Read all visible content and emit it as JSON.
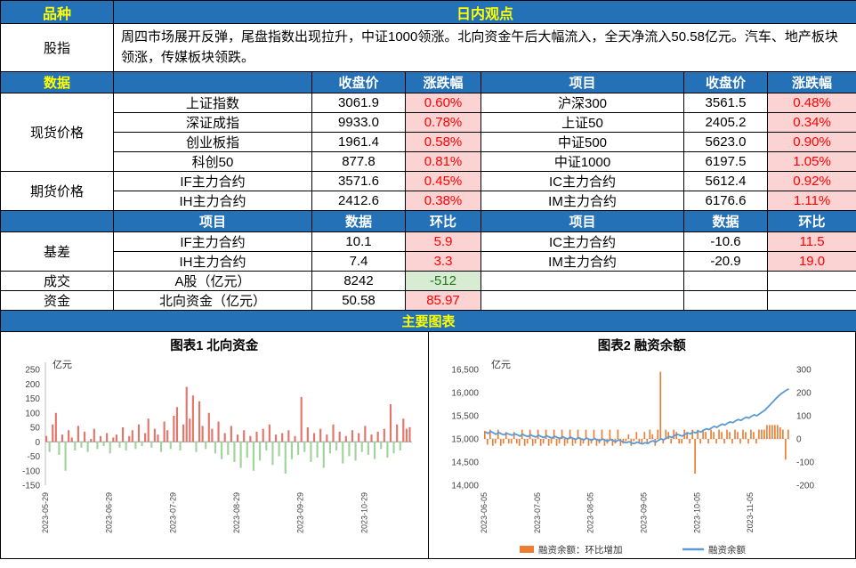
{
  "colors": {
    "header_blue": "#2471b8",
    "header_yellow": "#ffff00",
    "pink_bg": "#fbd3d3",
    "red_text": "#ff0000",
    "green_bg": "#d8ecd4",
    "green_text": "#217821"
  },
  "top": {
    "col1": "品种",
    "title": "日内观点"
  },
  "view": {
    "label": "股指",
    "text": "周四市场展开反弹，尾盘指数出现拉升，中证1000领涨。北向资金午后大幅流入，全天净流入50.58亿元。汽车、地产板块领涨，传媒板块领跌。"
  },
  "h1": {
    "c1": "数据",
    "c3": "收盘价",
    "c4": "涨跌幅",
    "c5": "项目",
    "c6": "收盘价",
    "c7": "涨跌幅"
  },
  "spot": {
    "label": "现货价格",
    "rows": [
      {
        "n1": "上证指数",
        "v1": "3061.9",
        "p1": "0.60%",
        "n2": "沪深300",
        "v2": "3561.5",
        "p2": "0.48%"
      },
      {
        "n1": "深证成指",
        "v1": "9933.0",
        "p1": "0.78%",
        "n2": "上证50",
        "v2": "2405.2",
        "p2": "0.34%"
      },
      {
        "n1": "创业板指",
        "v1": "1961.4",
        "p1": "0.58%",
        "n2": "中证500",
        "v2": "5623.0",
        "p2": "0.90%"
      },
      {
        "n1": "科创50",
        "v1": "877.8",
        "p1": "0.81%",
        "n2": "中证1000",
        "v2": "6197.5",
        "p2": "1.05%"
      }
    ]
  },
  "fut": {
    "label": "期货价格",
    "rows": [
      {
        "n1": "IF主力合约",
        "v1": "3571.6",
        "p1": "0.45%",
        "n2": "IC主力合约",
        "v2": "5612.4",
        "p2": "0.92%"
      },
      {
        "n1": "IH主力合约",
        "v1": "2412.6",
        "p1": "0.38%",
        "n2": "IM主力合约",
        "v2": "6176.6",
        "p2": "1.11%"
      }
    ]
  },
  "h2": {
    "c2": "项目",
    "c3": "数据",
    "c4": "环比",
    "c5": "项目",
    "c6": "数据",
    "c7": "环比"
  },
  "basis": {
    "label": "基差",
    "rows": [
      {
        "n1": "IF主力合约",
        "v1": "10.1",
        "p1": "5.9",
        "n2": "IC主力合约",
        "v2": "-10.6",
        "p2": "11.5"
      },
      {
        "n1": "IH主力合约",
        "v1": "7.4",
        "p1": "3.3",
        "n2": "IM主力合约",
        "v2": "-20.9",
        "p2": "19.0"
      }
    ]
  },
  "turnover": {
    "label": "成交",
    "name": "A股（亿元）",
    "value": "8242",
    "delta": "-512"
  },
  "flows": {
    "label": "资金",
    "name": "北向资金（亿元）",
    "value": "50.58",
    "delta": "85.97"
  },
  "charts_header": "主要图表",
  "chart_data": [
    {
      "type": "bar",
      "title": "图表1 北向资金",
      "ylabel": "亿元",
      "ylim": [
        -150,
        250
      ],
      "yticks": [
        250,
        200,
        150,
        100,
        50,
        0,
        -50,
        -100,
        -150
      ],
      "xtick_labels": [
        "2023-05-29",
        "2023-06-29",
        "2023-07-29",
        "2023-08-29",
        "2023-09-29",
        "2023-10-29"
      ],
      "xtick_idx": [
        0,
        20,
        40,
        60,
        80,
        100
      ],
      "colors": {
        "positive": "#e3756a",
        "negative": "#9fd49b"
      },
      "values": [
        20,
        -35,
        60,
        100,
        -45,
        25,
        -100,
        40,
        15,
        -30,
        55,
        -20,
        35,
        -35,
        10,
        45,
        -25,
        20,
        -15,
        30,
        -40,
        15,
        25,
        -20,
        50,
        -30,
        20,
        40,
        -25,
        60,
        -15,
        30,
        80,
        -20,
        45,
        25,
        -35,
        70,
        40,
        -25,
        90,
        120,
        -30,
        60,
        190,
        80,
        160,
        -35,
        140,
        55,
        -25,
        100,
        45,
        -40,
        70,
        -60,
        30,
        -45,
        55,
        -70,
        25,
        -90,
        40,
        -55,
        20,
        -100,
        35,
        -65,
        45,
        -30,
        60,
        -80,
        25,
        -50,
        30,
        -110,
        40,
        -60,
        20,
        -45,
        155,
        -35,
        50,
        -70,
        30,
        -55,
        45,
        -90,
        25,
        -40,
        60,
        -30,
        35,
        -75,
        20,
        -50,
        40,
        -65,
        30,
        -35,
        55,
        -45,
        25,
        -60,
        35,
        -25,
        45,
        -55,
        130,
        -40,
        60,
        -30,
        80,
        45,
        50.6
      ]
    },
    {
      "type": "combo",
      "title": "图表2 融资余额",
      "ylabel": "亿元",
      "ylim_left": [
        14000,
        16500
      ],
      "yticks_left": [
        16500,
        16000,
        15500,
        15000,
        14500,
        14000
      ],
      "ylim_right": [
        -200,
        300
      ],
      "yticks_right": [
        300,
        200,
        100,
        0,
        -100,
        -200
      ],
      "xtick_labels": [
        "2023-06-05",
        "2023-07-05",
        "2023-08-05",
        "2023-09-05",
        "2023-10-05",
        "2023-11-05"
      ],
      "xtick_idx": [
        0,
        20,
        40,
        60,
        80,
        100
      ],
      "legend": [
        {
          "label": "融资余额：环比增加",
          "color": "#ed7d31",
          "type": "bar"
        },
        {
          "label": "融资余额",
          "color": "#5b9bd5",
          "type": "line"
        }
      ],
      "series": [
        {
          "name": "融资余额：环比增加",
          "type": "bar",
          "axis": "right",
          "values": [
            35,
            -25,
            40,
            -30,
            -20,
            40,
            -30,
            -20,
            30,
            -20,
            -20,
            30,
            -20,
            -30,
            40,
            -30,
            -20,
            40,
            -30,
            -20,
            40,
            -30,
            -20,
            40,
            -30,
            -20,
            40,
            -30,
            -20,
            40,
            -30,
            -20,
            40,
            -30,
            -20,
            40,
            -30,
            -20,
            40,
            -30,
            -20,
            40,
            -30,
            -20,
            40,
            -30,
            -20,
            40,
            -30,
            -20,
            40,
            -30,
            -20,
            -10,
            20,
            -30,
            -10,
            30,
            -20,
            -20,
            30,
            -20,
            40,
            20,
            -30,
            40,
            290,
            -20,
            40,
            30,
            -20,
            40,
            30,
            -20,
            -20,
            40,
            30,
            -20,
            40,
            -150,
            40,
            -20,
            40,
            30,
            -20,
            40,
            30,
            -20,
            40,
            30,
            -20,
            40,
            30,
            -20,
            40,
            30,
            -20,
            40,
            30,
            -20,
            40,
            30,
            -20,
            40,
            40,
            40,
            60,
            60,
            60,
            60,
            60,
            50,
            40,
            -90,
            40
          ]
        },
        {
          "name": "融资余额",
          "type": "line",
          "axis": "left",
          "values": [
            15150,
            15120,
            15160,
            15130,
            15100,
            15140,
            15110,
            15090,
            15120,
            15100,
            15080,
            15110,
            15090,
            15060,
            15100,
            15070,
            15050,
            15090,
            15060,
            15040,
            15080,
            15050,
            15030,
            15070,
            15040,
            15020,
            15060,
            15030,
            15010,
            15050,
            15020,
            15000,
            15040,
            15010,
            14990,
            15030,
            15000,
            14980,
            15020,
            14990,
            14970,
            15010,
            14980,
            14960,
            15000,
            14970,
            14950,
            14990,
            14960,
            14940,
            14980,
            14950,
            14930,
            14920,
            14940,
            14910,
            14900,
            14930,
            14910,
            14890,
            14920,
            14900,
            14940,
            14960,
            14930,
            14970,
            15000,
            14980,
            15020,
            15050,
            15030,
            15070,
            15100,
            15080,
            15060,
            15100,
            15130,
            15110,
            15150,
            15130,
            15170,
            15150,
            15190,
            15220,
            15200,
            15240,
            15270,
            15250,
            15290,
            15320,
            15300,
            15340,
            15370,
            15350,
            15390,
            15420,
            15400,
            15440,
            15470,
            15450,
            15490,
            15520,
            15500,
            15540,
            15580,
            15620,
            15680,
            15740,
            15800,
            15860,
            15920,
            15970,
            16010,
            16050,
            16080
          ]
        }
      ]
    }
  ]
}
